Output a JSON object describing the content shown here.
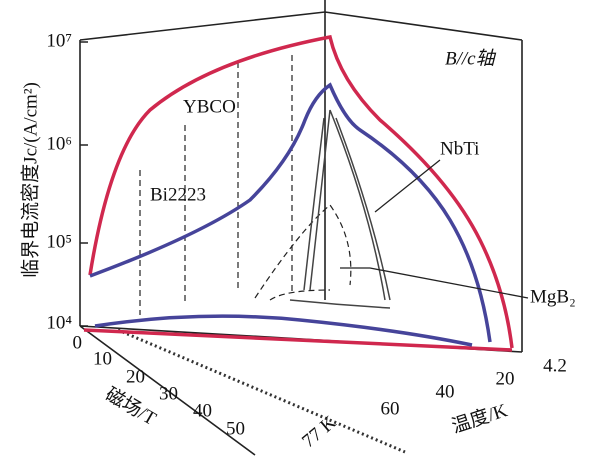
{
  "title_label": "B//c轴",
  "y_axis": {
    "label": "临界电流密度Jc/(A/cm²)",
    "ticks": [
      "10⁷",
      "10⁶",
      "10⁵",
      "10⁴"
    ]
  },
  "field_axis": {
    "label": "磁场/T",
    "ticks": [
      "0",
      "10",
      "20",
      "30",
      "40",
      "50"
    ]
  },
  "temperature_axis": {
    "label": "温度/K",
    "ticks": [
      "4.2",
      "20",
      "40",
      "60"
    ]
  },
  "marker_77k": "77 K",
  "materials": [
    "YBCO",
    "Bi2223",
    "NbTi",
    "MgB₂"
  ]
}
